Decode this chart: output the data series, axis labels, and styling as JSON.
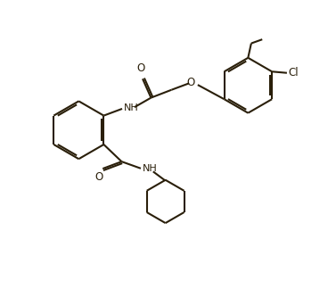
{
  "bg": "#ffffff",
  "lc": "#2a1f0a",
  "lw": 1.5,
  "bo": 0.07,
  "figsize": [
    3.77,
    3.24
  ],
  "dpi": 100,
  "xlim": [
    -1,
    11
  ],
  "ylim": [
    -0.5,
    10.5
  ]
}
